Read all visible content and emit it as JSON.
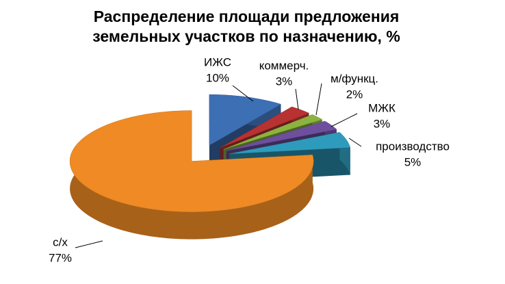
{
  "chart_data": {
    "type": "pie3d",
    "title": "Распределение площади предложения земельных участков по назначению, %",
    "categories": [
      "ИЖС",
      "коммерч.",
      "м/функц.",
      "МЖК",
      "производство",
      "с/х"
    ],
    "values": [
      10,
      3,
      2,
      3,
      5,
      77
    ],
    "value_labels": [
      "10%",
      "3%",
      "2%",
      "3%",
      "5%",
      "77%"
    ],
    "colors": [
      "#3d6fb5",
      "#b83232",
      "#8cb33f",
      "#6d4f9e",
      "#2e9bbd",
      "#f08a24"
    ]
  }
}
